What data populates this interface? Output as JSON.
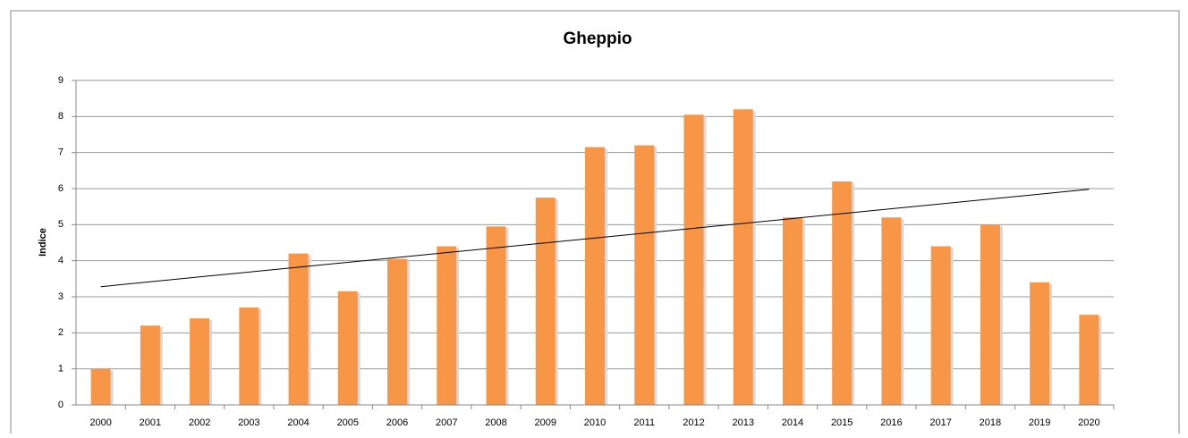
{
  "chart_data": {
    "type": "bar",
    "title": "Gheppio",
    "y_label": "Indice",
    "categories": [
      "2000",
      "2001",
      "2002",
      "2003",
      "2004",
      "2005",
      "2006",
      "2007",
      "2008",
      "2009",
      "2010",
      "2011",
      "2012",
      "2013",
      "2014",
      "2015",
      "2016",
      "2017",
      "2018",
      "2019",
      "2020"
    ],
    "values": [
      1.0,
      2.2,
      2.4,
      2.7,
      4.2,
      3.15,
      4.05,
      4.4,
      4.95,
      5.75,
      7.15,
      7.2,
      8.05,
      8.2,
      5.2,
      6.2,
      5.2,
      4.4,
      5.0,
      3.4,
      2.5
    ],
    "color": "#f79646",
    "trendline": {
      "values": [
        3.28,
        5.98
      ],
      "color": "#000000"
    },
    "ylim": [
      0,
      9
    ],
    "yticks": [
      0,
      1,
      2,
      3,
      4,
      5,
      6,
      7,
      8,
      9
    ],
    "grid": true
  }
}
